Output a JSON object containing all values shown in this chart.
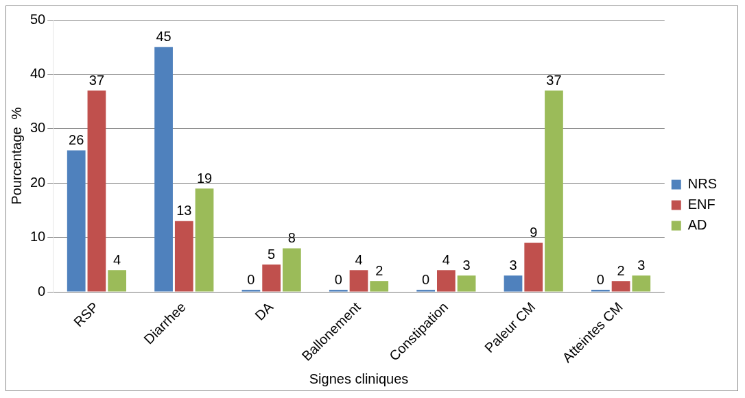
{
  "chart_data": {
    "type": "bar",
    "xlabel": "Signes cliniques",
    "ylabel": "Pourcentage  %",
    "categories": [
      "RSP",
      "Diarrhee",
      "DA",
      "Ballonement",
      "Constipation",
      "Paleur CM",
      "Atteintes CM"
    ],
    "series": [
      {
        "name": "NRS",
        "color": "#4f81bd",
        "values": [
          26,
          45,
          0,
          0,
          0,
          3,
          0
        ]
      },
      {
        "name": "ENF",
        "color": "#c0504d",
        "values": [
          37,
          13,
          5,
          4,
          4,
          9,
          2
        ]
      },
      {
        "name": "AD",
        "color": "#9bbb59",
        "values": [
          4,
          19,
          8,
          2,
          3,
          37,
          3
        ]
      }
    ],
    "ylim": [
      0,
      50
    ],
    "yticks": [
      0,
      10,
      20,
      30,
      40,
      50
    ],
    "grid": "y",
    "legend": "right",
    "data_labels": true
  }
}
